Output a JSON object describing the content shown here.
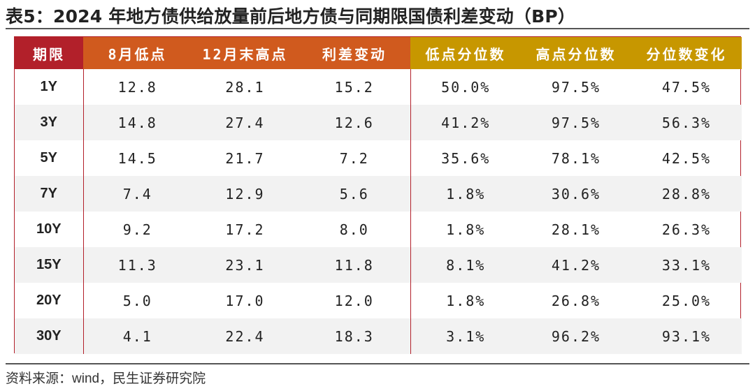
{
  "title": "表5：2024 年地方债供给放量前后地方债与同期限国债利差变动（BP）",
  "table": {
    "headers": [
      "期限",
      "8月低点",
      "12月末高点",
      "利差变动",
      "低点分位数",
      "高点分位数",
      "分位数变化"
    ],
    "rows": [
      [
        "1Y",
        "12.8",
        "28.1",
        "15.2",
        "50.0%",
        "97.5%",
        "47.5%"
      ],
      [
        "3Y",
        "14.8",
        "27.4",
        "12.6",
        "41.2%",
        "97.5%",
        "56.3%"
      ],
      [
        "5Y",
        "14.5",
        "21.7",
        "7.2",
        "35.6%",
        "78.1%",
        "42.5%"
      ],
      [
        "7Y",
        "7.4",
        "12.9",
        "5.6",
        "1.8%",
        "30.6%",
        "28.8%"
      ],
      [
        "10Y",
        "9.2",
        "17.2",
        "8.0",
        "1.8%",
        "28.1%",
        "26.3%"
      ],
      [
        "15Y",
        "11.3",
        "23.1",
        "11.8",
        "8.1%",
        "41.2%",
        "33.1%"
      ],
      [
        "20Y",
        "5.0",
        "17.0",
        "12.0",
        "1.8%",
        "26.8%",
        "25.0%"
      ],
      [
        "30Y",
        "4.1",
        "22.4",
        "18.3",
        "3.1%",
        "96.2%",
        "93.1%"
      ]
    ]
  },
  "source": "资料来源：wind，民生证券研究院",
  "colors": {
    "term_header": "#b2202a",
    "spread_header": "#d05a1e",
    "percentile_header": "#c79700",
    "border": "#b2202a",
    "zebra": "#f2f2f2"
  }
}
